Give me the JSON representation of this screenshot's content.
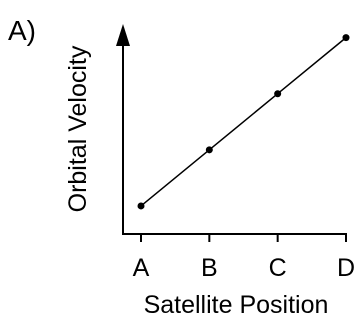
{
  "panel_label": "A)",
  "chart_data": {
    "type": "line",
    "categories": [
      "A",
      "B",
      "C",
      "D"
    ],
    "values": [
      1,
      2,
      3,
      4
    ],
    "xlabel": "Satellite Position",
    "ylabel": "Orbital Velocity",
    "ylim": [
      0.5,
      4.1
    ],
    "grid": false,
    "marker": "dot",
    "y_axis_arrow": true,
    "colors": {
      "line": "#000000",
      "points": "#000000",
      "axes": "#000000"
    }
  }
}
